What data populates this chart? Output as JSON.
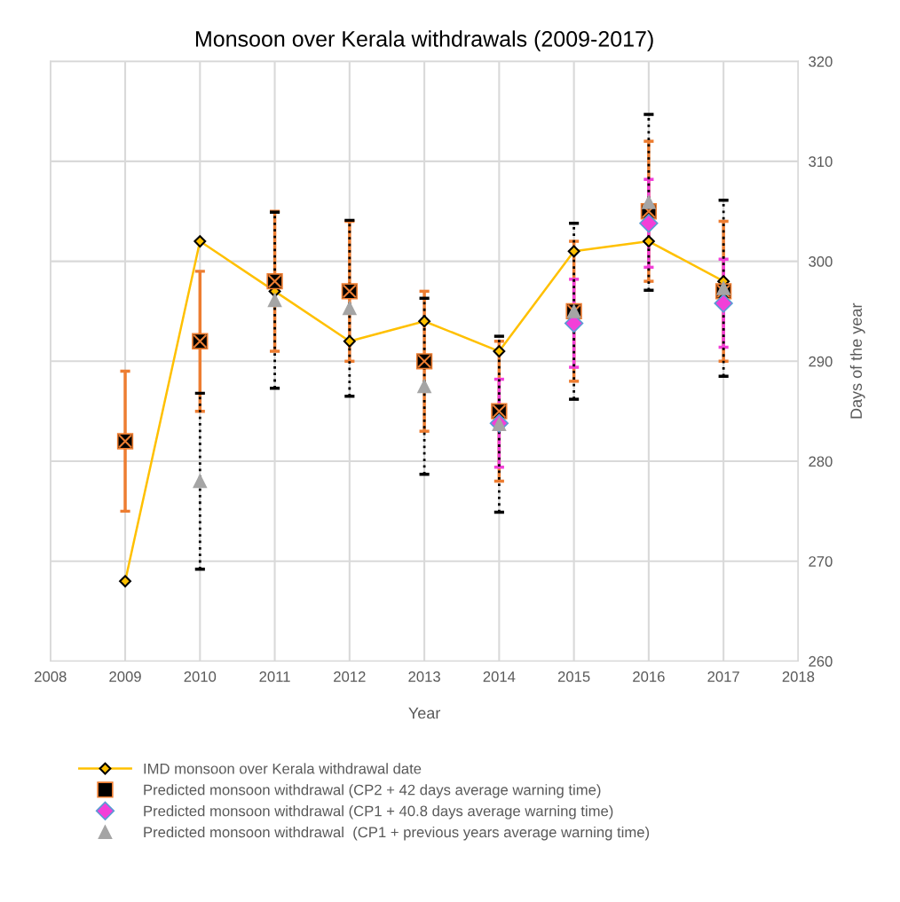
{
  "chart_data": {
    "type": "line",
    "title": "Monsoon over Kerala withdrawals (2009-2017)",
    "xlabel": "Year",
    "y2label": "Days of the year",
    "x": [
      2009,
      2010,
      2011,
      2012,
      2013,
      2014,
      2015,
      2016,
      2017
    ],
    "xlim": [
      2008,
      2018
    ],
    "xticks": [
      2008,
      2009,
      2010,
      2011,
      2012,
      2013,
      2014,
      2015,
      2016,
      2017,
      2018
    ],
    "y2lim": [
      260,
      320
    ],
    "y2ticks": [
      260,
      270,
      280,
      290,
      300,
      310,
      320
    ],
    "grid": true,
    "legend": "bottom",
    "series": [
      {
        "name": "IMD monsoon over Kerala withdrawal date",
        "axis": "y2",
        "color": "#ffc000",
        "marker": "diamond",
        "line_style": "solid",
        "values": [
          268,
          302,
          297,
          292,
          294,
          291,
          301,
          302,
          298
        ]
      },
      {
        "name": "Predicted monsoon withdrawal (CP2 + 42 days average warning time)",
        "type": "scatter",
        "axis": "y2",
        "color": "#ed7d31",
        "marker": "square",
        "line_style": "solid",
        "values": [
          282,
          292,
          298,
          297,
          290,
          285,
          295,
          305,
          297
        ],
        "errors": [
          7,
          7,
          7,
          7,
          7,
          7,
          7,
          7,
          7
        ]
      },
      {
        "name": "Predicted monsoon withdrawal (CP1 + 40.8 days average warning time)",
        "type": "scatter",
        "axis": "y2",
        "color": "#f23fd8",
        "marker": "diamond",
        "line_style": "solid",
        "values": [
          null,
          null,
          null,
          null,
          null,
          283.8,
          293.8,
          303.8,
          295.8
        ],
        "errors": [
          null,
          null,
          null,
          null,
          null,
          4.4,
          4.4,
          4.4,
          4.4
        ]
      },
      {
        "name": "Predicted monsoon withdrawal  (CP1 + previous years average warning time)",
        "type": "scatter",
        "axis": "y2",
        "color": "#a5a5a5",
        "marker": "triangle",
        "line_style": "dotted",
        "values": [
          null,
          278,
          296.1,
          295.3,
          287.5,
          283.7,
          295,
          305.9,
          297.3
        ],
        "errors": [
          null,
          8.8,
          8.8,
          8.8,
          8.8,
          8.8,
          8.8,
          8.8,
          8.8
        ]
      }
    ]
  }
}
